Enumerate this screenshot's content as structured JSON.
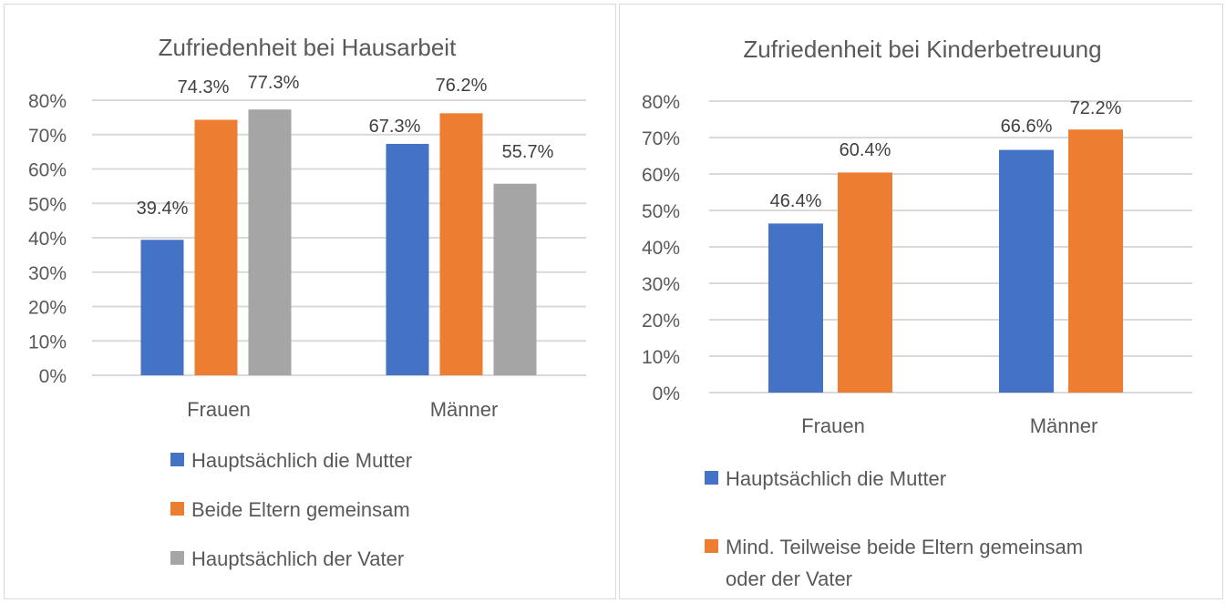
{
  "chart_data": [
    {
      "type": "bar",
      "title": "Zufriedenheit bei Hausarbeit",
      "xlabel": "",
      "ylabel": "",
      "categories": [
        "Frauen",
        "Männer"
      ],
      "ylim": [
        0,
        80
      ],
      "yticks": [
        "0%",
        "10%",
        "20%",
        "30%",
        "40%",
        "50%",
        "60%",
        "70%",
        "80%"
      ],
      "grid": true,
      "legend_position": "bottom",
      "series": [
        {
          "name": "Hauptsächlich die Mutter",
          "color": "#4472c4",
          "values": [
            39.4,
            67.3
          ],
          "labels": [
            "39.4%",
            "67.3%"
          ]
        },
        {
          "name": "Beide Eltern gemeinsam",
          "color": "#ed7d31",
          "values": [
            74.3,
            76.2
          ],
          "labels": [
            "74.3%",
            "76.2%"
          ]
        },
        {
          "name": "Hauptsächlich der Vater",
          "color": "#a5a5a5",
          "values": [
            77.3,
            55.7
          ],
          "labels": [
            "77.3%",
            "55.7%"
          ]
        }
      ]
    },
    {
      "type": "bar",
      "title": "Zufriedenheit bei Kinderbetreuung",
      "xlabel": "",
      "ylabel": "",
      "categories": [
        "Frauen",
        "Männer"
      ],
      "ylim": [
        0,
        80
      ],
      "yticks": [
        "0%",
        "10%",
        "20%",
        "30%",
        "40%",
        "50%",
        "60%",
        "70%",
        "80%"
      ],
      "grid": true,
      "legend_position": "bottom",
      "series": [
        {
          "name": "Hauptsächlich die Mutter",
          "color": "#4472c4",
          "values": [
            46.4,
            66.6
          ],
          "labels": [
            "46.4%",
            "66.6%"
          ]
        },
        {
          "name": "Mind. Teilweise beide Eltern gemeinsam oder der Vater",
          "legend_lines": [
            "Mind. Teilweise beide Eltern gemeinsam",
            "oder der Vater"
          ],
          "color": "#ed7d31",
          "values": [
            60.4,
            72.2
          ],
          "labels": [
            "60.4%",
            "72.2%"
          ]
        }
      ]
    }
  ]
}
